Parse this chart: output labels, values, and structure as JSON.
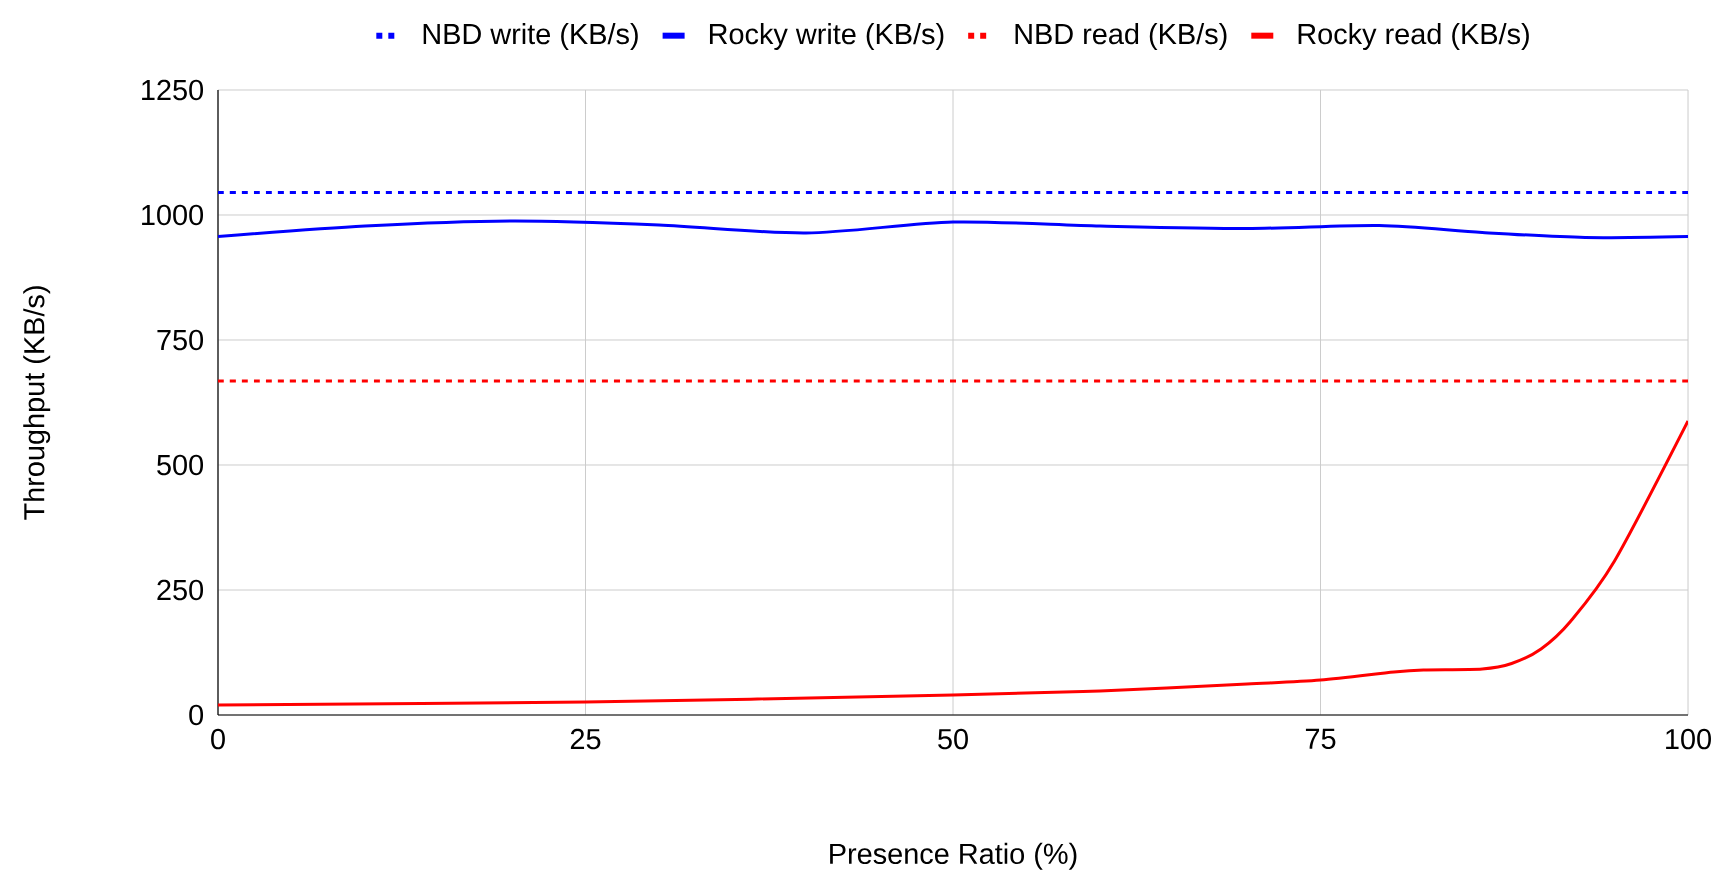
{
  "chart_data": {
    "type": "line",
    "xlabel": "Presence Ratio (%)",
    "ylabel": "Throughput (KB/s)",
    "xlim": [
      0,
      100
    ],
    "xticks": [
      0,
      25,
      50,
      75,
      100
    ],
    "ylim": [
      0,
      1250
    ],
    "yticks": [
      0,
      250,
      500,
      750,
      1000,
      1250
    ],
    "grid": true,
    "legend": "top",
    "marker": "none",
    "series": [
      {
        "name": "NBD write (KB/s)",
        "color": "#0000ff",
        "line_style": "dotted",
        "x": [
          0,
          100
        ],
        "values": [
          1045,
          1045
        ]
      },
      {
        "name": "Rocky write (KB/s)",
        "color": "#0000ff",
        "line_style": "solid",
        "x": [
          0,
          10,
          20,
          30,
          40,
          50,
          60,
          70,
          79,
          86,
          93,
          100
        ],
        "values": [
          957,
          978,
          988,
          980,
          964,
          986,
          978,
          973,
          979,
          965,
          955,
          957
        ]
      },
      {
        "name": "NBD read (KB/s)",
        "color": "#ff0000",
        "line_style": "dotted",
        "x": [
          0,
          100
        ],
        "values": [
          668,
          668
        ]
      },
      {
        "name": "Rocky read (KB/s)",
        "color": "#ff0000",
        "line_style": "solid",
        "x": [
          0,
          25,
          50,
          60,
          70,
          75,
          80,
          82,
          86,
          88,
          90,
          92,
          95,
          100
        ],
        "values": [
          20,
          26,
          40,
          48,
          62,
          70,
          86,
          90,
          92,
          103,
          132,
          187,
          308,
          588
        ]
      }
    ]
  }
}
